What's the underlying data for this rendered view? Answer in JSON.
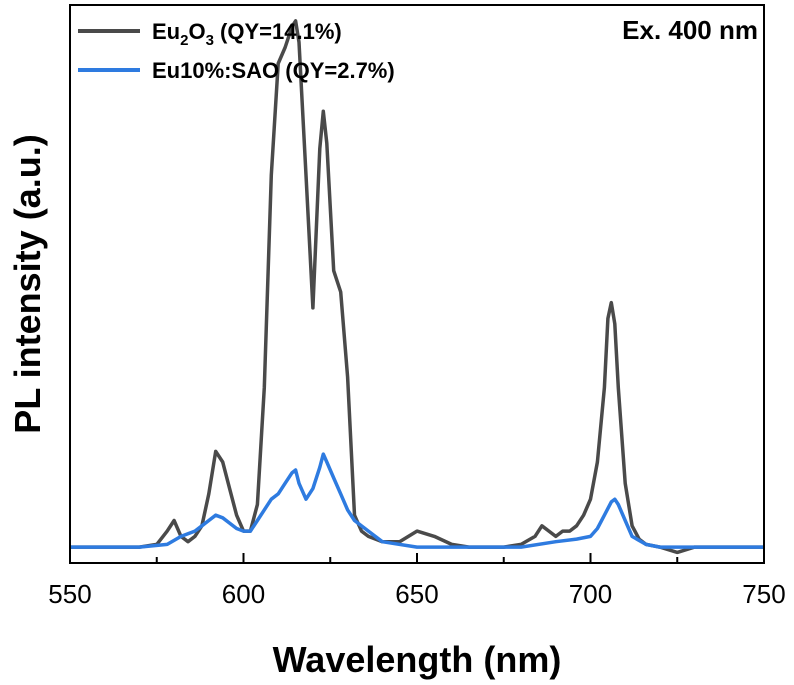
{
  "chart_data": {
    "type": "line",
    "xlabel": "Wavelength (nm)",
    "ylabel": "PL intensity (a.u.)",
    "xlim": [
      550,
      750
    ],
    "ylim": [
      -0.3,
      10.2
    ],
    "x_ticks": [
      550,
      600,
      650,
      700,
      750
    ],
    "y_ticks_shown": false,
    "grid": false,
    "legend_position": "top-left",
    "annotation": "Ex. 400 nm",
    "series": [
      {
        "name": "Eu2O3 (QY=14.1%)",
        "name_parts": {
          "pre": "Eu",
          "sub1": "2",
          "mid": "O",
          "sub2": "3",
          "post": " (QY=14.1%)"
        },
        "color": "#4a4a4a",
        "x": [
          550,
          560,
          570,
          575,
          578,
          580,
          582,
          584,
          586,
          588,
          590,
          592,
          594,
          596,
          598,
          600,
          602,
          604,
          606,
          608,
          610,
          612,
          614,
          615,
          616,
          618,
          620,
          622,
          623,
          624,
          626,
          628,
          630,
          632,
          634,
          636,
          640,
          645,
          650,
          655,
          660,
          665,
          670,
          675,
          680,
          684,
          686,
          688,
          690,
          692,
          694,
          696,
          698,
          700,
          702,
          704,
          705,
          706,
          707,
          708,
          710,
          712,
          714,
          716,
          720,
          725,
          730,
          735,
          740,
          745,
          750
        ],
        "y": [
          0,
          0,
          0,
          0.05,
          0.3,
          0.5,
          0.2,
          0.1,
          0.2,
          0.4,
          1.0,
          1.8,
          1.6,
          1.1,
          0.6,
          0.3,
          0.3,
          0.8,
          3.0,
          7.0,
          9.1,
          9.4,
          9.8,
          9.9,
          9.5,
          7.0,
          4.5,
          7.5,
          8.2,
          7.6,
          5.2,
          4.8,
          3.2,
          0.6,
          0.3,
          0.2,
          0.1,
          0.1,
          0.3,
          0.2,
          0.05,
          0,
          0,
          0,
          0.05,
          0.2,
          0.4,
          0.3,
          0.2,
          0.3,
          0.3,
          0.4,
          0.6,
          0.9,
          1.6,
          3.0,
          4.3,
          4.6,
          4.2,
          3.0,
          1.2,
          0.4,
          0.15,
          0.05,
          0,
          -0.1,
          0,
          0,
          0,
          0,
          0
        ]
      },
      {
        "name": "Eu10%:SAO (QY=2.7%)",
        "color": "#2e7be0",
        "x": [
          550,
          560,
          570,
          578,
          582,
          586,
          588,
          590,
          592,
          594,
          596,
          598,
          600,
          602,
          604,
          606,
          608,
          610,
          612,
          614,
          615,
          616,
          618,
          620,
          622,
          623,
          624,
          626,
          628,
          630,
          632,
          636,
          640,
          650,
          660,
          670,
          680,
          690,
          696,
          700,
          702,
          704,
          706,
          707,
          708,
          710,
          712,
          716,
          720,
          730,
          740,
          750
        ],
        "y": [
          0,
          0,
          0,
          0.05,
          0.2,
          0.3,
          0.4,
          0.5,
          0.6,
          0.55,
          0.45,
          0.35,
          0.3,
          0.3,
          0.5,
          0.7,
          0.9,
          1.0,
          1.2,
          1.4,
          1.45,
          1.2,
          0.9,
          1.1,
          1.5,
          1.75,
          1.6,
          1.3,
          1.0,
          0.7,
          0.5,
          0.3,
          0.1,
          0,
          0,
          0,
          0,
          0.1,
          0.15,
          0.2,
          0.35,
          0.6,
          0.85,
          0.9,
          0.8,
          0.5,
          0.2,
          0.05,
          0,
          0,
          0,
          0
        ]
      }
    ]
  }
}
